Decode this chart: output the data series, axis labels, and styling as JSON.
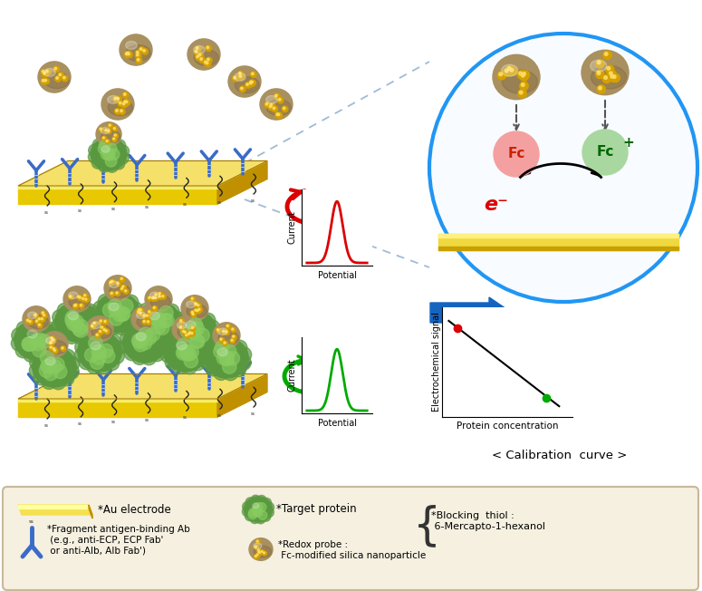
{
  "bg_color": "#ffffff",
  "legend_box_color": "#f5f0e0",
  "legend_box_edge": "#c8b89a",
  "circle_color": "#2196F3",
  "fc_reduced_color": "#f4a0a0",
  "fc_oxidized_color": "#a8d8a0",
  "arrow_red_color": "#e00000",
  "arrow_green_color": "#00aa00",
  "arrow_blue_color": "#1565C0",
  "nano_body_color": "#a89060",
  "nano_dot_color": "#d4a000",
  "dashed_line_color": "#6699cc",
  "protein_color": "#6aaa50",
  "ab_color": "#3a6bc8",
  "electrode_top": "#f5e642",
  "electrode_mid": "#e8d000",
  "electrode_bot": "#c8a800",
  "thiol_color": "#333333",
  "calibration_xlabel": "Protein concentration",
  "calibration_ylabel": "Electrochemical signal",
  "calibration_label": "< Calibration  curve >",
  "legend_au": "*Au electrode",
  "legend_fab": "*Fragment antigen-binding Ab\n (e.g., anti-ECP, ECP Fab'\n or anti-Alb, Alb Fab')",
  "legend_protein": "*Target protein",
  "legend_thiol": "*Blocking  thiol :\n 6-Mercapto-1-hexanol",
  "legend_redox": "*Redox probe :\n Fc-modified silica nanoparticle"
}
